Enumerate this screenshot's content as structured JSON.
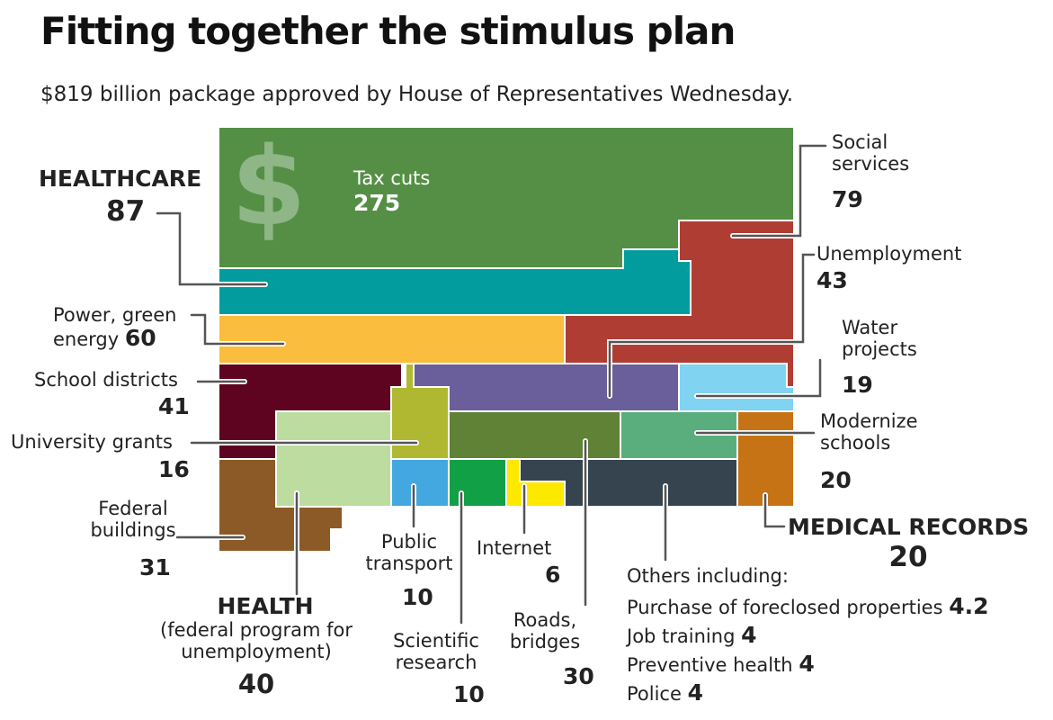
{
  "title": "Fitting together the stimulus plan",
  "subtitle": "$819 billion package approved by House of Representatives Wednesday.",
  "chart_data": {
    "type": "treemap",
    "title": "Fitting together the stimulus plan",
    "units": "billion $",
    "total": 819,
    "items": [
      {
        "key": "tax",
        "label": "Tax cuts",
        "value": "275",
        "color": "#548f45"
      },
      {
        "key": "healthcare",
        "label": "HEALTHCARE",
        "value": "87",
        "color": "#039c9e"
      },
      {
        "key": "social",
        "label": "Social services",
        "value": "79",
        "color": "#b03d34"
      },
      {
        "key": "power",
        "label": "Power, green energy",
        "value": "60",
        "color": "#fbbd3d"
      },
      {
        "key": "unemployment",
        "label": "Unemployment",
        "value": "43",
        "color": "#6a5f9a"
      },
      {
        "key": "school",
        "label": "School districts",
        "value": "41",
        "color": "#5e0420"
      },
      {
        "key": "health",
        "label": "HEALTH",
        "sublabel": "(federal program for unemployment)",
        "value": "40",
        "color": "#bcdca0"
      },
      {
        "key": "federal",
        "label": "Federal buildings",
        "value": "31",
        "color": "#8c5a26"
      },
      {
        "key": "roads",
        "label": "Roads, bridges",
        "value": "30",
        "color": "#5f8236"
      },
      {
        "key": "modernize",
        "label": "Modernize schools",
        "value": "20",
        "color": "#5aae7e"
      },
      {
        "key": "medical",
        "label": "MEDICAL RECORDS",
        "value": "20",
        "color": "#c57315"
      },
      {
        "key": "water",
        "label": "Water projects",
        "value": "19",
        "color": "#80d3f1"
      },
      {
        "key": "university",
        "label": "University grants",
        "value": "16",
        "color": "#b0b832"
      },
      {
        "key": "transport",
        "label": "Public transport",
        "value": "10",
        "color": "#44a8e0"
      },
      {
        "key": "science",
        "label": "Scientific research",
        "value": "10",
        "color": "#12a046"
      },
      {
        "key": "internet",
        "label": "Internet",
        "value": "6",
        "color": "#fde800"
      },
      {
        "key": "others",
        "label": "Others including:",
        "value": "",
        "color": "#36444f"
      }
    ],
    "others_breakdown": [
      {
        "label": "Purchase of foreclosed properties",
        "value": "4.2"
      },
      {
        "label": "Job training",
        "value": "4"
      },
      {
        "label": "Preventive health",
        "value": "4"
      },
      {
        "label": "Police",
        "value": "4"
      }
    ]
  }
}
